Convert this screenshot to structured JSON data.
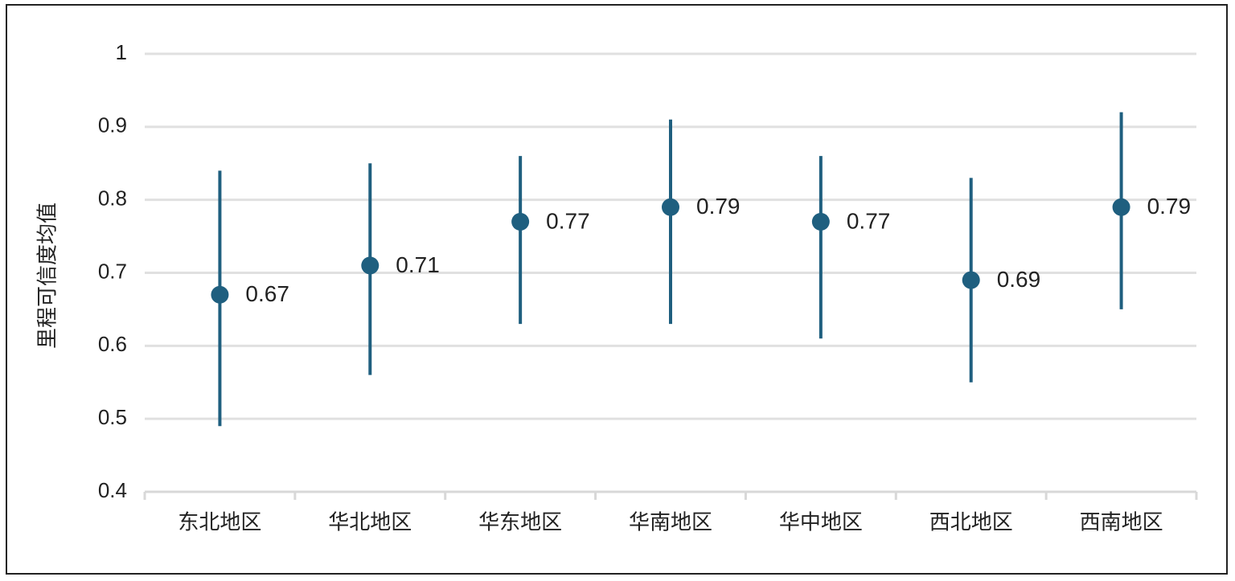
{
  "chart_data": {
    "type": "scatter",
    "ylabel": "里程可信度均值",
    "ylim": [
      0.4,
      1
    ],
    "yticks": [
      "0.4",
      "0.5",
      "0.6",
      "0.7",
      "0.8",
      "0.9",
      "1"
    ],
    "categories": [
      "东北地区",
      "华北地区",
      "华东地区",
      "华南地区",
      "华中地区",
      "西北地区",
      "西南地区"
    ],
    "values": [
      0.67,
      0.71,
      0.77,
      0.79,
      0.77,
      0.69,
      0.79
    ],
    "value_labels": [
      "0.67",
      "0.71",
      "0.77",
      "0.79",
      "0.77",
      "0.69",
      "0.79"
    ],
    "error_low": [
      0.49,
      0.56,
      0.63,
      0.63,
      0.61,
      0.55,
      0.65
    ],
    "error_high": [
      0.84,
      0.85,
      0.86,
      0.91,
      0.86,
      0.83,
      0.92
    ],
    "grid": true,
    "color": "#1f5f7f"
  }
}
